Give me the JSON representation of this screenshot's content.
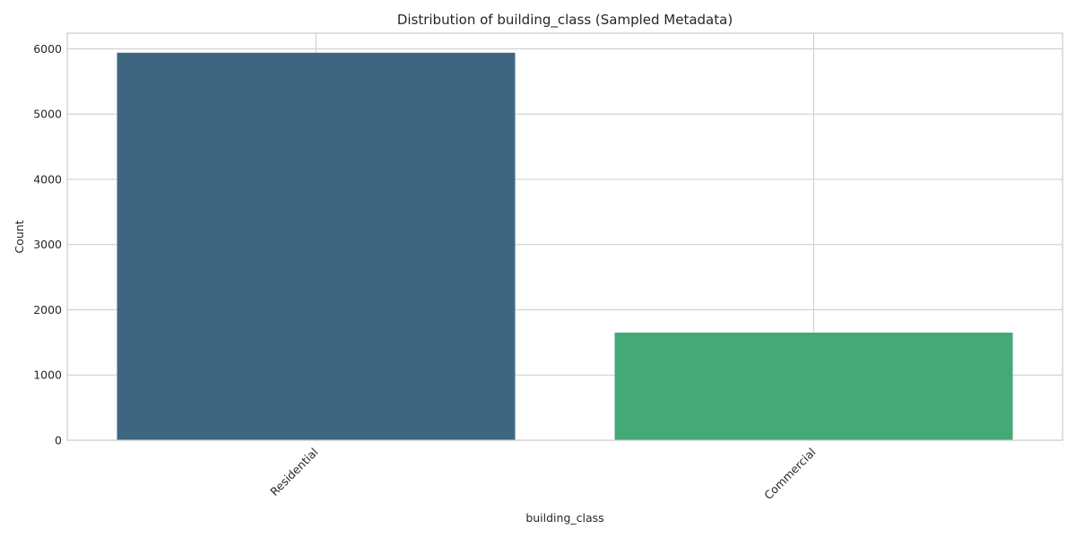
{
  "chart_data": {
    "type": "bar",
    "title": "Distribution of building_class (Sampled Metadata)",
    "xlabel": "building_class",
    "ylabel": "Count",
    "categories": [
      "Residential",
      "Commercial"
    ],
    "values": [
      5940,
      1650
    ],
    "colors": [
      "#3e6681",
      "#45a877"
    ],
    "ylim": [
      0,
      6240
    ],
    "yticks": [
      0,
      1000,
      2000,
      3000,
      4000,
      5000,
      6000
    ],
    "grid": true,
    "legend": "none"
  }
}
